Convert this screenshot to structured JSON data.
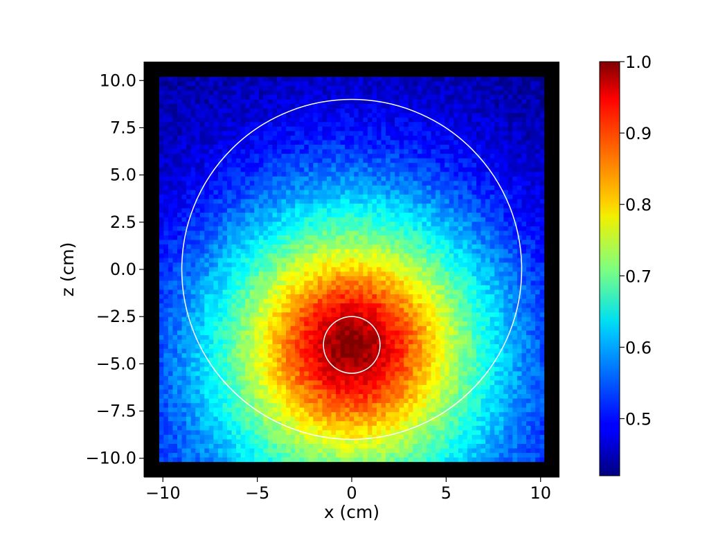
{
  "chart_data": {
    "type": "heatmap",
    "title": "",
    "xlabel": "x (cm)",
    "ylabel": "z (cm)",
    "xlim": [
      -11,
      11
    ],
    "ylim": [
      -11,
      11
    ],
    "data_extent": [
      -10.2,
      10.2
    ],
    "x_ticks": [
      -10,
      -5,
      0,
      5,
      10
    ],
    "x_tick_labels": [
      "−10",
      "−5",
      "0",
      "5",
      "10"
    ],
    "y_ticks": [
      10.0,
      7.5,
      5.0,
      2.5,
      0.0,
      -2.5,
      -5.0,
      -7.5,
      -10.0
    ],
    "y_tick_labels": [
      "10.0",
      "7.5",
      "5.0",
      "2.5",
      "0.0",
      "−2.5",
      "−5.0",
      "−7.5",
      "−10.0"
    ],
    "colormap": "jet",
    "colorbar": {
      "min": 0.42,
      "max": 1.0,
      "ticks": [
        1.0,
        0.9,
        0.8,
        0.7,
        0.6,
        0.5
      ],
      "tick_labels": [
        "1.0",
        "0.9",
        "0.8",
        "0.7",
        "0.6",
        "0.5"
      ]
    },
    "peak": {
      "x": 0,
      "z": -4.0,
      "value": 1.0
    },
    "circles": [
      {
        "center": [
          0,
          0
        ],
        "radius": 9.0,
        "color": "#ffffff"
      },
      {
        "center": [
          0,
          -4.0
        ],
        "radius": 1.5,
        "color": "#ffffff"
      }
    ],
    "background_color": "#000000",
    "grid": false
  }
}
